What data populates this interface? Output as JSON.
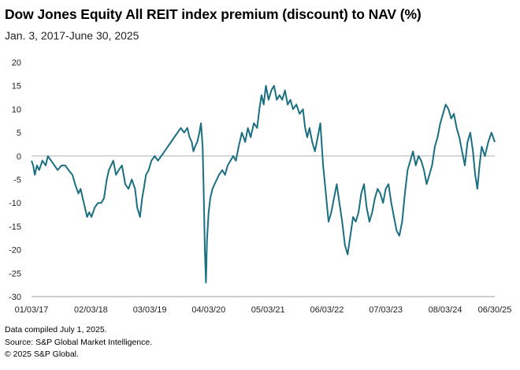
{
  "chart_data": {
    "type": "line",
    "title": "Dow Jones Equity All REIT index premium (discount) to NAV (%)",
    "subtitle": "Jan. 3, 2017-June 30, 2025",
    "ylim": [
      -30,
      20
    ],
    "yticks": [
      20,
      15,
      10,
      5,
      0,
      -5,
      -10,
      -15,
      -20,
      -25,
      -30
    ],
    "xlim": [
      2017.0,
      2025.5
    ],
    "xticks": [
      {
        "label": "01/03/17",
        "t": 2017.0
      },
      {
        "label": "02/03/18",
        "t": 2018.09
      },
      {
        "label": "03/03/19",
        "t": 2019.17
      },
      {
        "label": "04/03/20",
        "t": 2020.25
      },
      {
        "label": "05/03/21",
        "t": 2021.34
      },
      {
        "label": "06/03/22",
        "t": 2022.42
      },
      {
        "label": "07/03/23",
        "t": 2023.5
      },
      {
        "label": "08/03/24",
        "t": 2024.59
      },
      {
        "label": "06/30/25",
        "t": 2025.5
      }
    ],
    "series": [
      {
        "name": "Premium (discount) to NAV",
        "color": "#1a6f80",
        "points": [
          [
            2017.0,
            -1
          ],
          [
            2017.03,
            -2
          ],
          [
            2017.06,
            -4
          ],
          [
            2017.1,
            -2
          ],
          [
            2017.14,
            -3
          ],
          [
            2017.2,
            -1
          ],
          [
            2017.26,
            -2
          ],
          [
            2017.3,
            0
          ],
          [
            2017.36,
            -1
          ],
          [
            2017.42,
            -2
          ],
          [
            2017.48,
            -3
          ],
          [
            2017.55,
            -2
          ],
          [
            2017.62,
            -2
          ],
          [
            2017.68,
            -3
          ],
          [
            2017.75,
            -4
          ],
          [
            2017.8,
            -6
          ],
          [
            2017.86,
            -8
          ],
          [
            2017.9,
            -7
          ],
          [
            2017.94,
            -9
          ],
          [
            2017.98,
            -11
          ],
          [
            2018.02,
            -13
          ],
          [
            2018.06,
            -12
          ],
          [
            2018.1,
            -13
          ],
          [
            2018.16,
            -11
          ],
          [
            2018.22,
            -10
          ],
          [
            2018.28,
            -10
          ],
          [
            2018.33,
            -9
          ],
          [
            2018.38,
            -5
          ],
          [
            2018.42,
            -3
          ],
          [
            2018.46,
            -2
          ],
          [
            2018.5,
            -1
          ],
          [
            2018.55,
            -4
          ],
          [
            2018.6,
            -3
          ],
          [
            2018.66,
            -2
          ],
          [
            2018.72,
            -6
          ],
          [
            2018.78,
            -7
          ],
          [
            2018.84,
            -5
          ],
          [
            2018.9,
            -7
          ],
          [
            2018.94,
            -11
          ],
          [
            2018.99,
            -13
          ],
          [
            2019.03,
            -9
          ],
          [
            2019.06,
            -7
          ],
          [
            2019.1,
            -4
          ],
          [
            2019.15,
            -3
          ],
          [
            2019.2,
            -1
          ],
          [
            2019.26,
            0
          ],
          [
            2019.32,
            -1
          ],
          [
            2019.38,
            0
          ],
          [
            2019.44,
            1
          ],
          [
            2019.5,
            2
          ],
          [
            2019.56,
            3
          ],
          [
            2019.62,
            4
          ],
          [
            2019.68,
            5
          ],
          [
            2019.74,
            6
          ],
          [
            2019.8,
            5
          ],
          [
            2019.86,
            6
          ],
          [
            2019.9,
            4
          ],
          [
            2019.94,
            3
          ],
          [
            2019.97,
            1
          ],
          [
            2020.0,
            2
          ],
          [
            2020.04,
            3
          ],
          [
            2020.08,
            5
          ],
          [
            2020.11,
            7
          ],
          [
            2020.14,
            2
          ],
          [
            2020.16,
            -8
          ],
          [
            2020.18,
            -20
          ],
          [
            2020.2,
            -27
          ],
          [
            2020.22,
            -18
          ],
          [
            2020.25,
            -12
          ],
          [
            2020.28,
            -9
          ],
          [
            2020.32,
            -7
          ],
          [
            2020.36,
            -6
          ],
          [
            2020.4,
            -5
          ],
          [
            2020.44,
            -4
          ],
          [
            2020.5,
            -3
          ],
          [
            2020.55,
            -4
          ],
          [
            2020.6,
            -2
          ],
          [
            2020.65,
            -1
          ],
          [
            2020.7,
            0
          ],
          [
            2020.75,
            -1
          ],
          [
            2020.8,
            2
          ],
          [
            2020.86,
            5
          ],
          [
            2020.92,
            3
          ],
          [
            2020.97,
            6
          ],
          [
            2021.02,
            4
          ],
          [
            2021.08,
            7
          ],
          [
            2021.14,
            6
          ],
          [
            2021.18,
            10
          ],
          [
            2021.22,
            13
          ],
          [
            2021.26,
            11
          ],
          [
            2021.3,
            15
          ],
          [
            2021.35,
            12
          ],
          [
            2021.4,
            14
          ],
          [
            2021.45,
            15
          ],
          [
            2021.5,
            12
          ],
          [
            2021.55,
            13
          ],
          [
            2021.6,
            12
          ],
          [
            2021.65,
            14
          ],
          [
            2021.7,
            11
          ],
          [
            2021.75,
            12
          ],
          [
            2021.8,
            10
          ],
          [
            2021.86,
            11
          ],
          [
            2021.92,
            9
          ],
          [
            2021.98,
            10
          ],
          [
            2022.02,
            6
          ],
          [
            2022.06,
            4
          ],
          [
            2022.1,
            6
          ],
          [
            2022.15,
            3
          ],
          [
            2022.2,
            1
          ],
          [
            2022.25,
            4
          ],
          [
            2022.3,
            7
          ],
          [
            2022.35,
            -2
          ],
          [
            2022.4,
            -8
          ],
          [
            2022.45,
            -14
          ],
          [
            2022.5,
            -12
          ],
          [
            2022.55,
            -9
          ],
          [
            2022.6,
            -6
          ],
          [
            2022.65,
            -10
          ],
          [
            2022.7,
            -14
          ],
          [
            2022.75,
            -19
          ],
          [
            2022.8,
            -21
          ],
          [
            2022.85,
            -17
          ],
          [
            2022.9,
            -13
          ],
          [
            2022.95,
            -14
          ],
          [
            2023.0,
            -12
          ],
          [
            2023.05,
            -8
          ],
          [
            2023.1,
            -6
          ],
          [
            2023.15,
            -11
          ],
          [
            2023.2,
            -14
          ],
          [
            2023.25,
            -12
          ],
          [
            2023.3,
            -9
          ],
          [
            2023.35,
            -7
          ],
          [
            2023.4,
            -8
          ],
          [
            2023.45,
            -10
          ],
          [
            2023.5,
            -7
          ],
          [
            2023.55,
            -6
          ],
          [
            2023.6,
            -10
          ],
          [
            2023.65,
            -13
          ],
          [
            2023.7,
            -16
          ],
          [
            2023.75,
            -17
          ],
          [
            2023.8,
            -14
          ],
          [
            2023.85,
            -8
          ],
          [
            2023.9,
            -3
          ],
          [
            2023.95,
            -1
          ],
          [
            2024.0,
            1
          ],
          [
            2024.05,
            -2
          ],
          [
            2024.1,
            0
          ],
          [
            2024.15,
            -1
          ],
          [
            2024.2,
            -3
          ],
          [
            2024.25,
            -6
          ],
          [
            2024.3,
            -4
          ],
          [
            2024.35,
            -2
          ],
          [
            2024.4,
            2
          ],
          [
            2024.45,
            4
          ],
          [
            2024.5,
            7
          ],
          [
            2024.55,
            9
          ],
          [
            2024.6,
            11
          ],
          [
            2024.65,
            10
          ],
          [
            2024.7,
            8
          ],
          [
            2024.75,
            9
          ],
          [
            2024.8,
            6
          ],
          [
            2024.85,
            4
          ],
          [
            2024.9,
            1
          ],
          [
            2024.95,
            -2
          ],
          [
            2025.0,
            3
          ],
          [
            2025.05,
            5
          ],
          [
            2025.1,
            1
          ],
          [
            2025.14,
            -4
          ],
          [
            2025.18,
            -7
          ],
          [
            2025.22,
            -2
          ],
          [
            2025.26,
            2
          ],
          [
            2025.32,
            0
          ],
          [
            2025.38,
            3
          ],
          [
            2025.44,
            5
          ],
          [
            2025.5,
            3
          ]
        ]
      }
    ],
    "notes": [
      "Data compiled July 1, 2025.",
      "Source: S&P Global Market Intelligence.",
      "© 2025 S&P Global."
    ]
  }
}
